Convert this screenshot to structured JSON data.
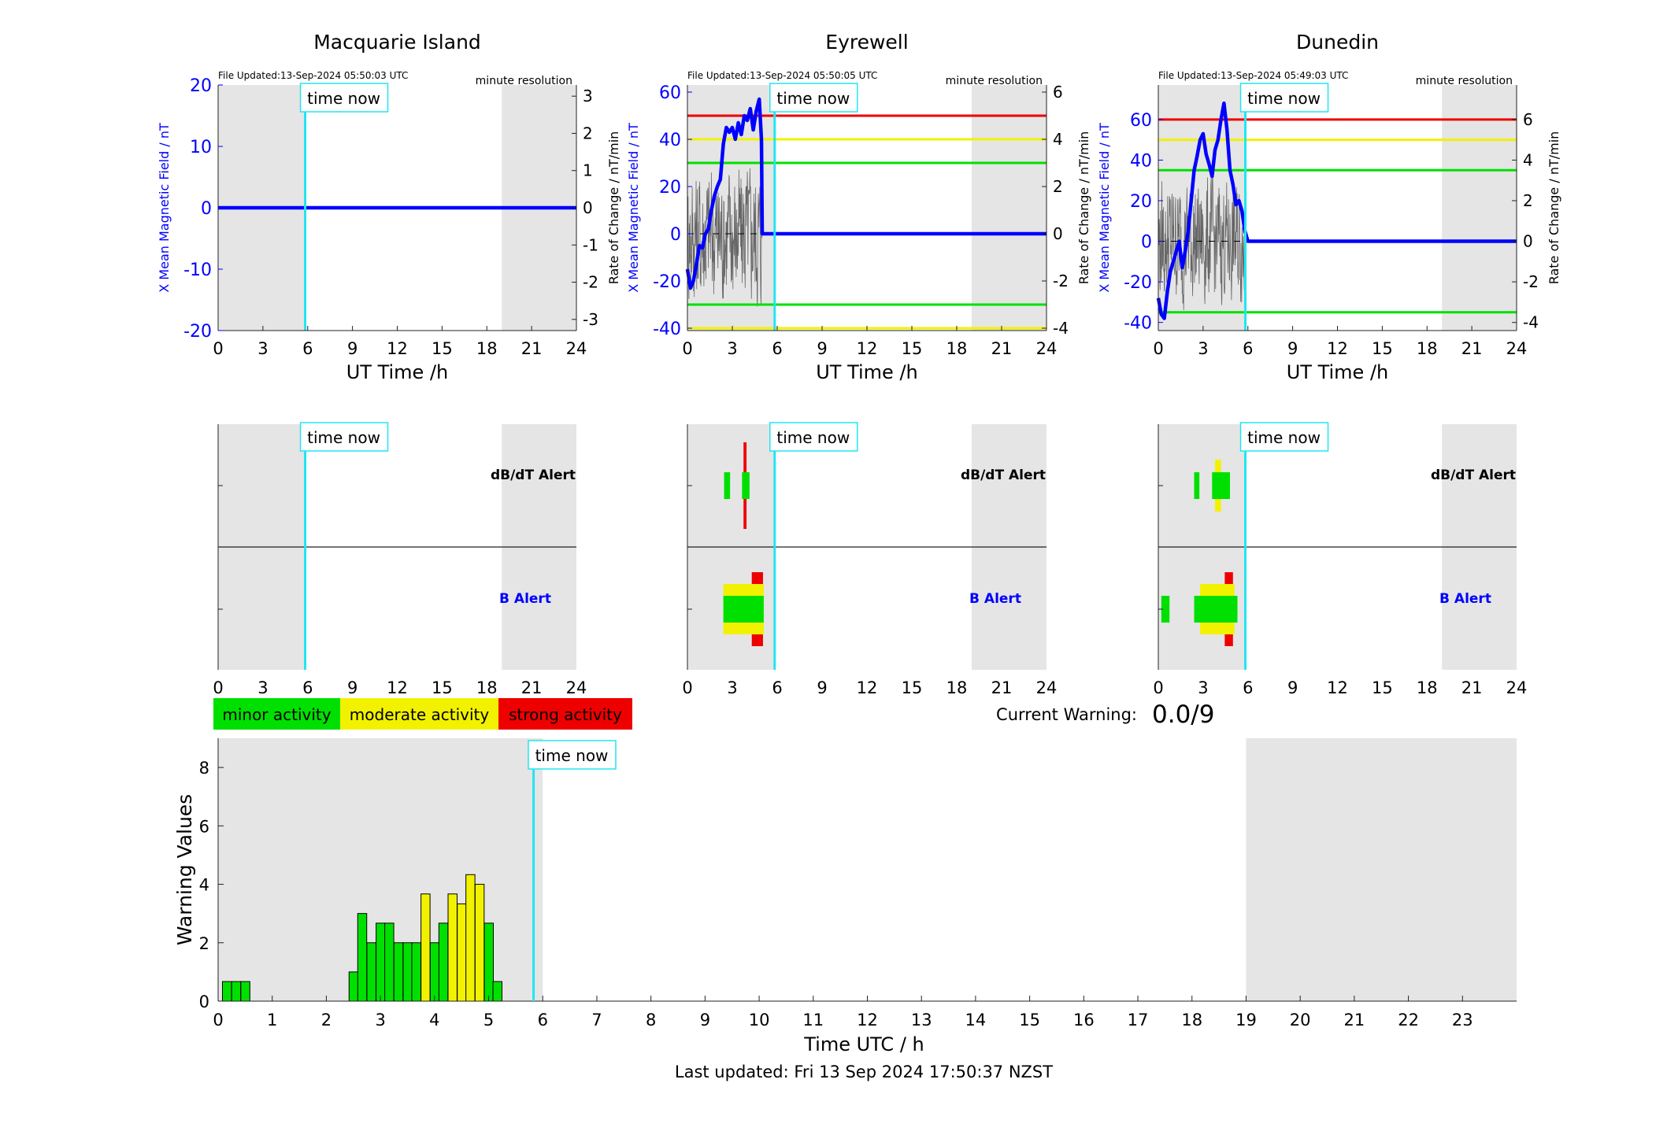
{
  "common": {
    "time_now_label": "time now",
    "time_now_h": 5.83,
    "ut_ticks": [
      "0",
      "3",
      "6",
      "9",
      "12",
      "15",
      "18",
      "21",
      "24"
    ],
    "ut_xlabel": "UT Time /h",
    "ylabel_left": "X Mean Magnetic Field / nT",
    "ylabel_right": "Rate of Change / nT/min",
    "resolution": "minute resolution",
    "shade_color": "#e5e5e5",
    "line_color": "#0000ff",
    "cursor_color": "#22e5f2"
  },
  "chart_data": [
    {
      "type": "line",
      "title": "Macquarie Island",
      "file_updated": "File Updated:13-Sep-2024 05:50:03 UTC",
      "left_ticks": [
        "20",
        "10",
        "0",
        "-10",
        "-20"
      ],
      "right_ticks": [
        "3",
        "2",
        "1",
        "0",
        "-1",
        "-2",
        "-3"
      ],
      "ylim": [
        -20,
        20
      ],
      "right_ylim": [
        -3.3,
        3.3
      ],
      "shade": [
        [
          0,
          5.83
        ],
        [
          19,
          24
        ]
      ],
      "thresholds": [],
      "x_series": [
        0,
        24
      ],
      "y_series": [
        0,
        0
      ],
      "noise": false
    },
    {
      "type": "line",
      "title": "Eyrewell",
      "file_updated": "File Updated:13-Sep-2024 05:50:05 UTC",
      "left_ticks": [
        "60",
        "40",
        "20",
        "0",
        "-20",
        "-40"
      ],
      "right_ticks": [
        "6",
        "4",
        "2",
        "0",
        "-2",
        "-4"
      ],
      "ylim": [
        -41,
        63
      ],
      "right_ylim": [
        -4.1,
        6.3
      ],
      "shade": [
        [
          0,
          5.83
        ],
        [
          19,
          24
        ]
      ],
      "thresholds": [
        {
          "value": 50,
          "color": "#ee0000"
        },
        {
          "value": 40,
          "color": "#f2f200"
        },
        {
          "value": 30,
          "color": "#00e000"
        },
        {
          "value": -30,
          "color": "#00e000"
        },
        {
          "value": -40,
          "color": "#f2f200"
        }
      ],
      "x_series": [
        0,
        0.2,
        0.4,
        0.6,
        0.8,
        1.0,
        1.2,
        1.4,
        1.6,
        1.8,
        2.0,
        2.2,
        2.4,
        2.6,
        2.8,
        3.0,
        3.2,
        3.4,
        3.6,
        3.8,
        4.0,
        4.2,
        4.4,
        4.6,
        4.8,
        4.95,
        5.0,
        5.83,
        24
      ],
      "y_series": [
        -15,
        -23,
        -20,
        -13,
        -5,
        -6,
        0,
        2,
        10,
        16,
        20,
        23,
        38,
        45,
        43,
        45,
        40,
        47,
        42,
        50,
        48,
        53,
        44,
        52,
        57,
        40,
        0,
        0,
        0
      ],
      "noise": true,
      "noise_end": 5.0
    },
    {
      "type": "line",
      "title": "Dunedin",
      "file_updated": "File Updated:13-Sep-2024 05:49:03 UTC",
      "left_ticks": [
        "60",
        "40",
        "20",
        "0",
        "-20",
        "-40"
      ],
      "right_ticks": [
        "6",
        "4",
        "2",
        "0",
        "-2",
        "-4"
      ],
      "ylim": [
        -44,
        77
      ],
      "right_ylim": [
        -4.4,
        7.7
      ],
      "shade": [
        [
          0,
          5.83
        ],
        [
          19,
          24
        ]
      ],
      "thresholds": [
        {
          "value": 60,
          "color": "#ee0000"
        },
        {
          "value": 50,
          "color": "#f2f200"
        },
        {
          "value": 35,
          "color": "#00e000"
        },
        {
          "value": -35,
          "color": "#00e000"
        }
      ],
      "x_series": [
        0,
        0.2,
        0.4,
        0.6,
        0.8,
        1.0,
        1.2,
        1.4,
        1.6,
        1.8,
        2.0,
        2.2,
        2.4,
        2.6,
        2.8,
        3.0,
        3.2,
        3.4,
        3.6,
        3.8,
        4.0,
        4.2,
        4.4,
        4.6,
        4.8,
        5.0,
        5.2,
        5.4,
        5.6,
        5.8,
        6.0,
        24
      ],
      "y_series": [
        -28,
        -36,
        -38,
        -25,
        -15,
        -10,
        -5,
        0,
        -13,
        -5,
        5,
        20,
        35,
        42,
        50,
        53,
        43,
        38,
        32,
        45,
        50,
        60,
        68,
        55,
        35,
        28,
        18,
        20,
        15,
        5,
        0,
        0
      ],
      "noise": true,
      "noise_end": 5.8
    }
  ],
  "alert_panels": [
    {
      "labels": {
        "dbdt": "dB/dT Alert",
        "b": "B Alert"
      },
      "shade": [
        [
          0,
          5.83
        ],
        [
          19,
          24
        ]
      ],
      "dbdt": [],
      "b": []
    },
    {
      "labels": {
        "dbdt": "dB/dT Alert",
        "b": "B Alert"
      },
      "shade": [
        [
          0,
          5.83
        ],
        [
          19,
          24
        ]
      ],
      "dbdt": [
        {
          "start": 2.45,
          "end": 2.85,
          "level": 1
        },
        {
          "start": 3.65,
          "end": 4.15,
          "level": 1
        },
        {
          "start": 3.75,
          "end": 3.95,
          "level": 3
        }
      ],
      "b": [
        {
          "start": 2.4,
          "end": 5.1,
          "level": 1
        },
        {
          "start": 2.4,
          "end": 5.1,
          "level": 2
        },
        {
          "start": 4.3,
          "end": 5.05,
          "level": 3
        }
      ]
    },
    {
      "labels": {
        "dbdt": "dB/dT Alert",
        "b": "B Alert"
      },
      "shade": [
        [
          0,
          5.83
        ],
        [
          19,
          24
        ]
      ],
      "dbdt": [
        {
          "start": 2.4,
          "end": 2.75,
          "level": 1
        },
        {
          "start": 3.6,
          "end": 4.8,
          "level": 1
        },
        {
          "start": 3.8,
          "end": 4.2,
          "level": 2
        }
      ],
      "b": [
        {
          "start": 0.2,
          "end": 0.75,
          "level": 1
        },
        {
          "start": 2.4,
          "end": 5.3,
          "level": 1
        },
        {
          "start": 2.8,
          "end": 5.1,
          "level": 2
        },
        {
          "start": 4.45,
          "end": 5.0,
          "level": 3
        }
      ]
    }
  ],
  "legend": [
    {
      "label": "minor activity",
      "color": "#00e000"
    },
    {
      "label": "moderate activity",
      "color": "#f2f200"
    },
    {
      "label": "strong activity",
      "color": "#ee0000"
    }
  ],
  "current_warning": {
    "label": "Current Warning:",
    "value": "0.0/9"
  },
  "warning_chart": {
    "type": "bar",
    "ylabel": "Warning Values",
    "xlabel": "Time UTC / h",
    "y_ticks": [
      "0",
      "2",
      "4",
      "6",
      "8"
    ],
    "x_ticks": [
      "0",
      "1",
      "2",
      "3",
      "4",
      "5",
      "6",
      "7",
      "8",
      "9",
      "10",
      "11",
      "12",
      "13",
      "14",
      "15",
      "16",
      "17",
      "18",
      "19",
      "20",
      "21",
      "22",
      "23"
    ],
    "ylim": [
      0,
      9
    ],
    "xlim": [
      0,
      24
    ],
    "shade": [
      [
        0,
        6
      ],
      [
        19,
        24
      ]
    ],
    "time_now_h": 5.83,
    "bar_width_h": 0.1667,
    "bars": [
      {
        "x": 0.08,
        "v": 0.67,
        "c": "green"
      },
      {
        "x": 0.25,
        "v": 0.67,
        "c": "green"
      },
      {
        "x": 0.42,
        "v": 0.67,
        "c": "green"
      },
      {
        "x": 2.42,
        "v": 1.0,
        "c": "green"
      },
      {
        "x": 2.58,
        "v": 3.0,
        "c": "green"
      },
      {
        "x": 2.75,
        "v": 2.0,
        "c": "green"
      },
      {
        "x": 2.92,
        "v": 2.67,
        "c": "green"
      },
      {
        "x": 3.08,
        "v": 2.67,
        "c": "green"
      },
      {
        "x": 3.25,
        "v": 2.0,
        "c": "green"
      },
      {
        "x": 3.42,
        "v": 2.0,
        "c": "green"
      },
      {
        "x": 3.58,
        "v": 2.0,
        "c": "green"
      },
      {
        "x": 3.75,
        "v": 3.67,
        "c": "yellow"
      },
      {
        "x": 3.92,
        "v": 2.0,
        "c": "green"
      },
      {
        "x": 4.08,
        "v": 2.67,
        "c": "green"
      },
      {
        "x": 4.25,
        "v": 3.67,
        "c": "yellow"
      },
      {
        "x": 4.42,
        "v": 3.33,
        "c": "yellow"
      },
      {
        "x": 4.58,
        "v": 4.33,
        "c": "yellow"
      },
      {
        "x": 4.75,
        "v": 4.0,
        "c": "yellow"
      },
      {
        "x": 4.92,
        "v": 2.67,
        "c": "green"
      },
      {
        "x": 5.08,
        "v": 0.67,
        "c": "green"
      }
    ]
  },
  "footer": "Last updated: Fri 13 Sep 2024 17:50:37 NZST"
}
